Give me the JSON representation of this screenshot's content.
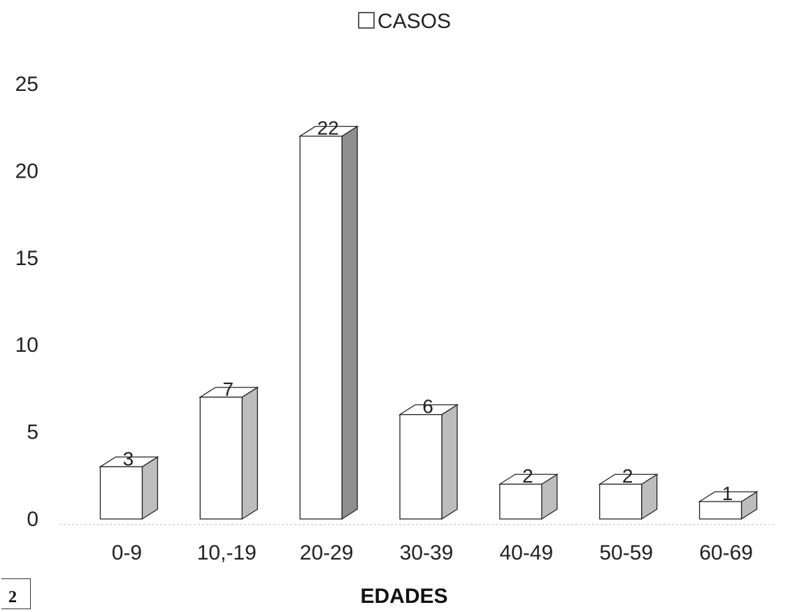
{
  "chart_data": {
    "type": "bar",
    "categories": [
      "0-9",
      "10,-19",
      "20-29",
      "30-39",
      "40-49",
      "50-59",
      "60-69"
    ],
    "series": [
      {
        "name": "CASOS",
        "values": [
          3,
          7,
          22,
          6,
          2,
          2,
          1
        ]
      }
    ],
    "data_labels": [
      "3",
      "7",
      "22",
      "6",
      "2",
      "2",
      "1"
    ],
    "xlabel": "EDADES",
    "ylabel": "",
    "ylim": [
      0,
      25
    ],
    "yticks": [
      "0",
      "5",
      "10",
      "15",
      "20",
      "25"
    ],
    "legend": {
      "position": "top-center",
      "entries": [
        "CASOS"
      ]
    },
    "grid": false,
    "style": "3d-bar",
    "colors": {
      "bar_front": "#ffffff",
      "bar_side": "#bdbdbd",
      "bar_side_tall": "#8f8f8f",
      "outline": "#222222"
    }
  },
  "page_number": "2"
}
